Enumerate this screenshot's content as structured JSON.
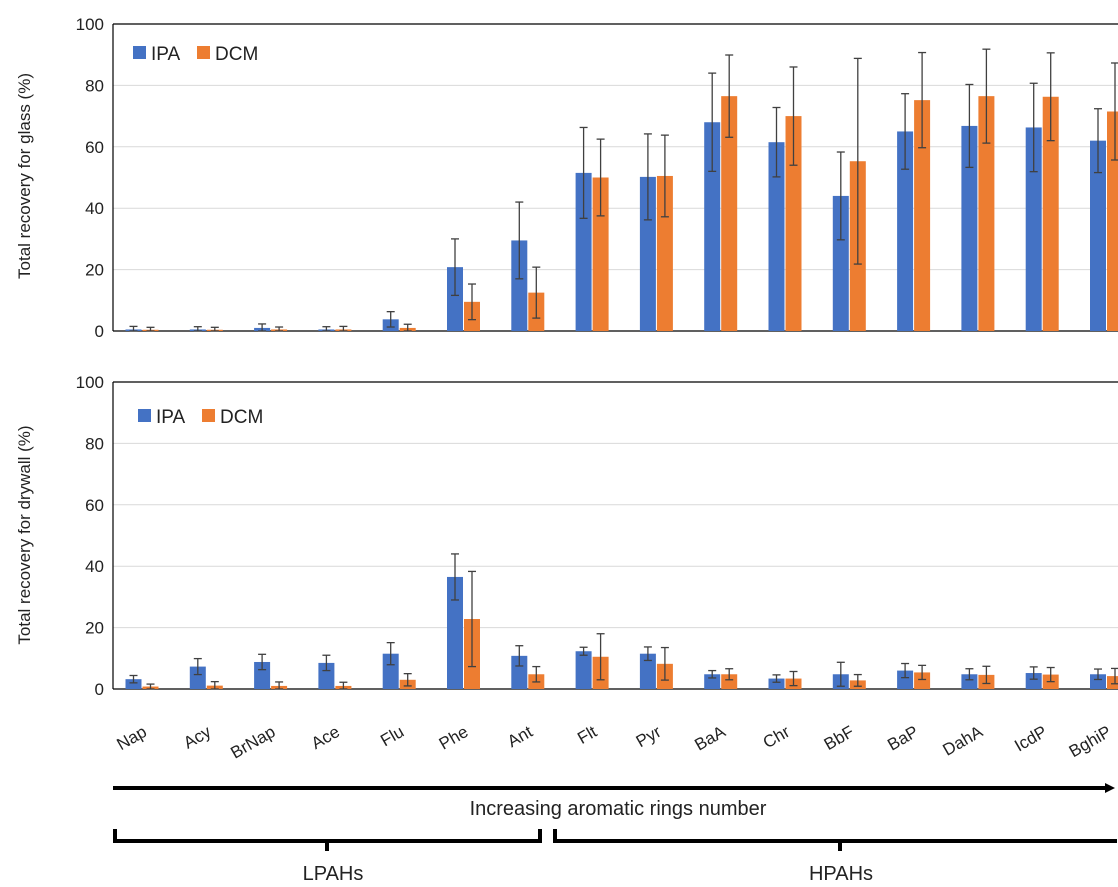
{
  "colors": {
    "ipa": "#4472c4",
    "dcm": "#ed7d31",
    "arrow": "#000000"
  },
  "categories": [
    "Nap",
    "Acy",
    "BrNap",
    "Ace",
    "Flu",
    "Phe",
    "Ant",
    "Flt",
    "Pyr",
    "BaA",
    "Chr",
    "BbF",
    "BaP",
    "DahA",
    "IcdP",
    "BghiP"
  ],
  "annotations": {
    "arrow_label": "Increasing aromatic rings number",
    "lpahs_label": "LPAHs",
    "hpahs_label": "HPAHs"
  },
  "chart_data": [
    {
      "type": "bar",
      "ylabel": "Total recovery for glass (%)",
      "ylim": [
        0,
        100
      ],
      "yticks": [
        0,
        20,
        40,
        60,
        80,
        100
      ],
      "grid": true,
      "legend": "top-left",
      "categories": [
        "Nap",
        "Acy",
        "BrNap",
        "Ace",
        "Flu",
        "Phe",
        "Ant",
        "Flt",
        "Pyr",
        "BaA",
        "Chr",
        "BbF",
        "BaP",
        "DahA",
        "IcdP",
        "BghiP"
      ],
      "series": [
        {
          "name": "IPA",
          "values": [
            0.5,
            0.5,
            1.0,
            0.5,
            3.8,
            20.8,
            29.5,
            51.5,
            50.2,
            68.0,
            61.5,
            44.0,
            65.0,
            66.8,
            66.3,
            62.0
          ],
          "errors": [
            1.0,
            0.9,
            1.3,
            0.9,
            2.5,
            9.2,
            12.5,
            14.8,
            14.0,
            16.0,
            11.3,
            14.3,
            12.3,
            13.5,
            14.4,
            10.4
          ]
        },
        {
          "name": "DCM",
          "values": [
            0.4,
            0.4,
            0.5,
            0.5,
            1.0,
            9.5,
            12.5,
            50.0,
            50.5,
            76.5,
            70.0,
            55.3,
            75.2,
            76.5,
            76.3,
            71.5
          ],
          "errors": [
            0.8,
            0.8,
            0.8,
            1.0,
            1.2,
            5.8,
            8.3,
            12.5,
            13.3,
            13.4,
            16.0,
            33.5,
            15.5,
            15.3,
            14.3,
            15.8
          ]
        }
      ]
    },
    {
      "type": "bar",
      "ylabel": "Total recovery for drywall (%)",
      "ylim": [
        0,
        100
      ],
      "yticks": [
        0,
        20,
        40,
        60,
        80,
        100
      ],
      "grid": true,
      "legend": "top-left",
      "categories": [
        "Nap",
        "Acy",
        "BrNap",
        "Ace",
        "Flu",
        "Phe",
        "Ant",
        "Flt",
        "Pyr",
        "BaA",
        "Chr",
        "BbF",
        "BaP",
        "DahA",
        "IcdP",
        "BghiP"
      ],
      "series": [
        {
          "name": "IPA",
          "values": [
            3.2,
            7.3,
            8.8,
            8.5,
            11.5,
            36.5,
            10.8,
            12.3,
            11.5,
            4.8,
            3.4,
            4.8,
            6.0,
            4.8,
            5.2,
            4.8
          ],
          "errors": [
            1.2,
            2.6,
            2.5,
            2.5,
            3.6,
            7.5,
            3.3,
            1.3,
            2.2,
            1.2,
            1.2,
            3.9,
            2.3,
            1.8,
            2.0,
            1.7
          ]
        },
        {
          "name": "DCM",
          "values": [
            0.8,
            1.1,
            1.0,
            1.0,
            3.0,
            22.8,
            4.8,
            10.5,
            8.2,
            4.8,
            3.4,
            2.8,
            5.4,
            4.6,
            4.7,
            4.2
          ],
          "errors": [
            0.8,
            1.3,
            1.3,
            1.2,
            2.0,
            15.5,
            2.5,
            7.5,
            5.3,
            1.8,
            2.3,
            1.9,
            2.3,
            2.8,
            2.3,
            2.5
          ]
        }
      ]
    }
  ]
}
